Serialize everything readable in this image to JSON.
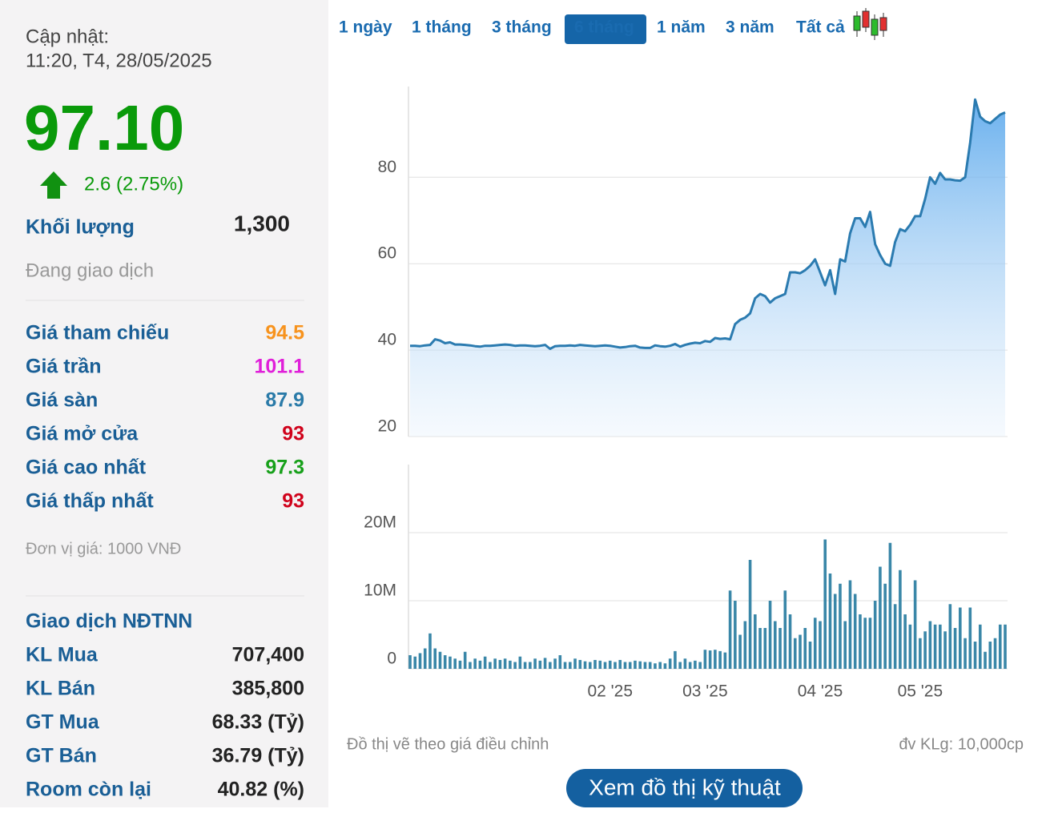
{
  "sidebar": {
    "update_label": "Cập nhật:",
    "update_time": "11:20, T4, 28/05/2025",
    "price": "97.10",
    "change": "2.6 (2.75%)",
    "volume_label": "Khối lượng",
    "volume": "1,300",
    "status": "Đang giao dịch",
    "prices": [
      {
        "label": "Giá tham chiếu",
        "value": "94.5",
        "color": "#f7931e"
      },
      {
        "label": "Giá trần",
        "value": "101.1",
        "color": "#e01fd9"
      },
      {
        "label": "Giá sàn",
        "value": "87.9",
        "color": "#2a7aa8"
      },
      {
        "label": "Giá mở cửa",
        "value": "93",
        "color": "#d0021b"
      },
      {
        "label": "Giá cao nhất",
        "value": "97.3",
        "color": "#17a01a"
      },
      {
        "label": "Giá thấp nhất",
        "value": "93",
        "color": "#d0021b"
      }
    ],
    "unit_note": "Đơn vị giá: 1000 VNĐ",
    "foreign_title": "Giao dịch NĐTNN",
    "foreign": [
      {
        "label": "KL Mua",
        "value": "707,400"
      },
      {
        "label": "KL Bán",
        "value": "385,800"
      },
      {
        "label": "GT Mua",
        "value": "68.33 (Tỷ)"
      },
      {
        "label": "GT Bán",
        "value": "36.79 (Tỷ)"
      },
      {
        "label": "Room còn lại",
        "value": "40.82 (%)"
      }
    ]
  },
  "tabs": {
    "items": [
      "1 ngày",
      "1 tháng",
      "3 tháng",
      "6 tháng",
      "1 năm",
      "3 năm",
      "Tất cả"
    ],
    "active": 3
  },
  "chart_data": [
    {
      "type": "area",
      "color": "#2b7bb0",
      "ylim": [
        20,
        101
      ],
      "yticks": [
        20,
        40,
        60,
        80
      ],
      "grid": true,
      "values": [
        41,
        41,
        40.9,
        41.1,
        41.2,
        42.5,
        42.2,
        41.6,
        41.8,
        41.3,
        41.3,
        41.2,
        41.1,
        40.9,
        40.8,
        41,
        41,
        41.1,
        41.2,
        41.3,
        41.2,
        41,
        41.1,
        41.1,
        41,
        40.9,
        41,
        41.2,
        40.3,
        40.9,
        41,
        41,
        41.1,
        41,
        41.2,
        41.1,
        41,
        40.9,
        41,
        41.1,
        41,
        40.8,
        40.6,
        40.7,
        40.9,
        41,
        40.6,
        40.5,
        40.5,
        41.1,
        40.9,
        40.8,
        41,
        41.4,
        40.8,
        41.2,
        41.5,
        41.7,
        41.6,
        42.1,
        41.9,
        42.8,
        42.6,
        42.7,
        42.5,
        46,
        47,
        47.5,
        48.5,
        52,
        53,
        52.5,
        51,
        52,
        52.5,
        53,
        58,
        58,
        57.8,
        58.5,
        59.5,
        61,
        58,
        55,
        58.5,
        53,
        61,
        60.5,
        67,
        70.5,
        70.5,
        68.5,
        72,
        64.5,
        62,
        60,
        59.5,
        65,
        68,
        67.5,
        69,
        71,
        71,
        75,
        80,
        78.5,
        81,
        79.5,
        79.5,
        79.3,
        79.2,
        80,
        88,
        98,
        94,
        93,
        92.5,
        93.5,
        94.5,
        95
      ]
    },
    {
      "type": "bar",
      "color": "#3a87a8",
      "ylim": [
        0,
        30000000
      ],
      "grid": true,
      "yticks": [
        0,
        {
          "value": 10000000,
          "label": "10M"
        },
        {
          "value": 20000000,
          "label": "20M"
        }
      ],
      "categories": [
        null,
        null,
        null,
        null,
        null,
        null,
        null,
        null,
        null,
        null,
        null,
        null,
        null,
        null,
        null,
        null,
        null,
        null,
        null,
        null,
        null,
        null,
        null,
        null,
        null,
        null,
        null,
        null,
        null,
        null,
        null,
        null,
        null,
        null,
        null,
        null,
        null,
        null,
        null,
        null,
        "02 '25",
        null,
        null,
        null,
        null,
        null,
        null,
        null,
        null,
        null,
        null,
        null,
        null,
        null,
        null,
        null,
        null,
        null,
        null,
        "03 '25",
        null,
        null,
        null,
        null,
        null,
        null,
        null,
        null,
        null,
        null,
        null,
        null,
        null,
        null,
        null,
        null,
        null,
        null,
        null,
        null,
        null,
        null,
        "04 '25",
        null,
        null,
        null,
        null,
        null,
        null,
        null,
        null,
        null,
        null,
        null,
        null,
        null,
        null,
        null,
        null,
        null,
        null,
        null,
        "05 '25",
        null,
        null,
        null,
        null,
        null,
        null,
        null,
        null,
        null,
        null,
        null,
        null,
        null,
        null,
        null,
        null,
        null
      ],
      "values": [
        2000000,
        1800000,
        2300000,
        3000000,
        5200000,
        3000000,
        2500000,
        2000000,
        1800000,
        1500000,
        1200000,
        2500000,
        1000000,
        1500000,
        1200000,
        1800000,
        1000000,
        1500000,
        1300000,
        1500000,
        1200000,
        1000000,
        1800000,
        1000000,
        1000000,
        1500000,
        1200000,
        1600000,
        1000000,
        1500000,
        2000000,
        1000000,
        1000000,
        1500000,
        1300000,
        1100000,
        1000000,
        1300000,
        1200000,
        1000000,
        1200000,
        1000000,
        1300000,
        1000000,
        1000000,
        1200000,
        1100000,
        1000000,
        1000000,
        800000,
        1000000,
        800000,
        1500000,
        2600000,
        1000000,
        1500000,
        1000000,
        1200000,
        1000000,
        2800000,
        2700000,
        2800000,
        2600000,
        2400000,
        11500000,
        10000000,
        5000000,
        7000000,
        16000000,
        8000000,
        6000000,
        6000000,
        10000000,
        7000000,
        6000000,
        11500000,
        8000000,
        4500000,
        5000000,
        6000000,
        4000000,
        7500000,
        7000000,
        19000000,
        14000000,
        11000000,
        12500000,
        7000000,
        13000000,
        11000000,
        8000000,
        7500000,
        7500000,
        10000000,
        15000000,
        12500000,
        18500000,
        9500000,
        14500000,
        8000000,
        6500000,
        13000000,
        4500000,
        5500000,
        7000000,
        6500000,
        6500000,
        5500000,
        9500000,
        6000000,
        9000000,
        4500000,
        9000000,
        4000000,
        6500000,
        2500000,
        4000000,
        4500000,
        6500000,
        6500000
      ]
    }
  ],
  "notes": {
    "left": "Đồ thị vẽ theo giá điều chỉnh",
    "right": "đv KLg: 10,000cp"
  },
  "button": "Xem đồ thị kỹ thuật"
}
